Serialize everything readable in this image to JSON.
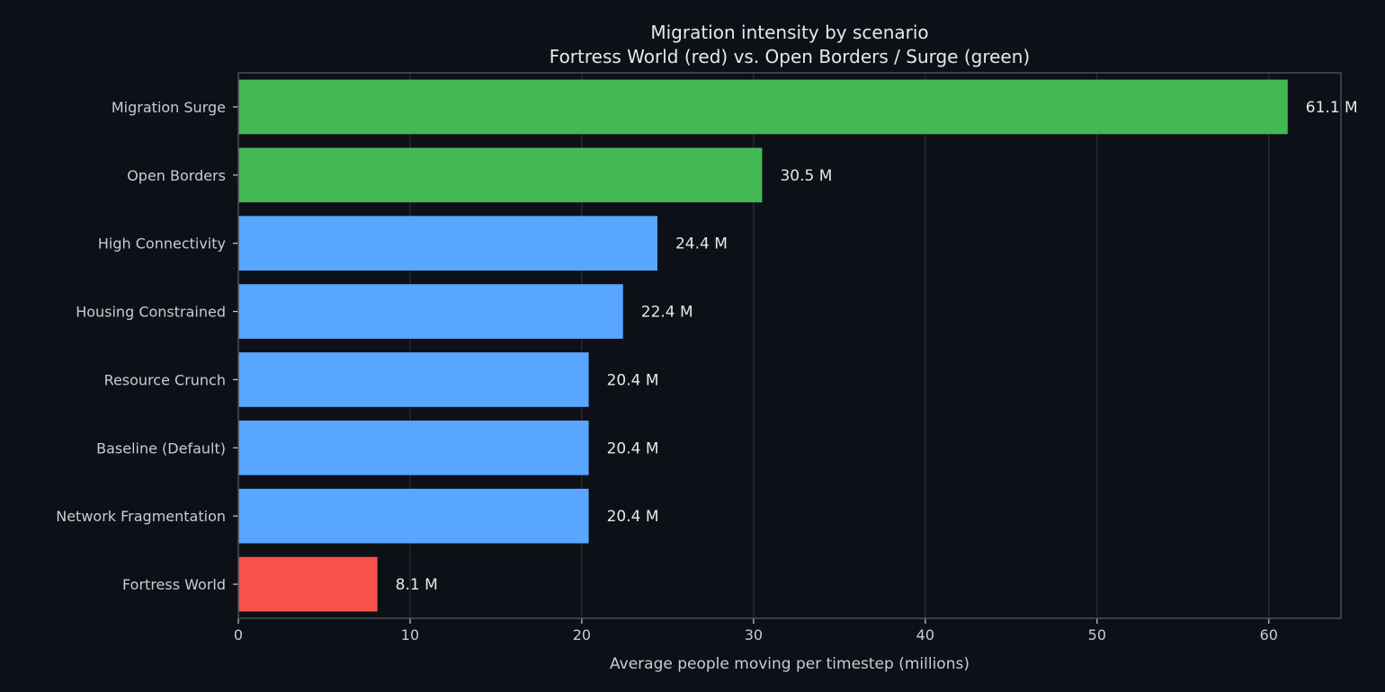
{
  "chart_data": {
    "type": "bar",
    "orientation": "horizontal",
    "title": "Migration intensity by scenario",
    "subtitle": "Fortress World (red) vs. Open Borders / Surge (green)",
    "xlabel": "Average people moving per timestep (millions)",
    "ylabel": "",
    "xlim": [
      0,
      64.2
    ],
    "xticks": [
      0,
      10,
      20,
      30,
      40,
      50,
      60
    ],
    "grid": "vertical",
    "legend": "none",
    "categories": [
      "Migration Surge",
      "Open Borders",
      "High Connectivity",
      "Housing Constrained",
      "Resource Crunch",
      "Baseline (Default)",
      "Network Fragmentation",
      "Fortress World"
    ],
    "values": [
      61.1,
      30.5,
      24.4,
      22.4,
      20.4,
      20.4,
      20.4,
      8.1
    ],
    "value_labels": [
      "61.1 M",
      "30.5 M",
      "24.4 M",
      "22.4 M",
      "20.4 M",
      "20.4 M",
      "20.4 M",
      "8.1 M"
    ],
    "bar_colors": [
      "#43b953",
      "#43b953",
      "#58a6ff",
      "#58a6ff",
      "#58a6ff",
      "#58a6ff",
      "#58a6ff",
      "#f85149"
    ]
  },
  "colors": {
    "background": "#0d1017",
    "frame": "#4a4e56",
    "grid": "#2a2e35",
    "text": "#e6e8ec",
    "muted_text": "#c9ccd2",
    "highlight_green": "#43b953",
    "default_blue": "#58a6ff",
    "highlight_red": "#f85149"
  }
}
